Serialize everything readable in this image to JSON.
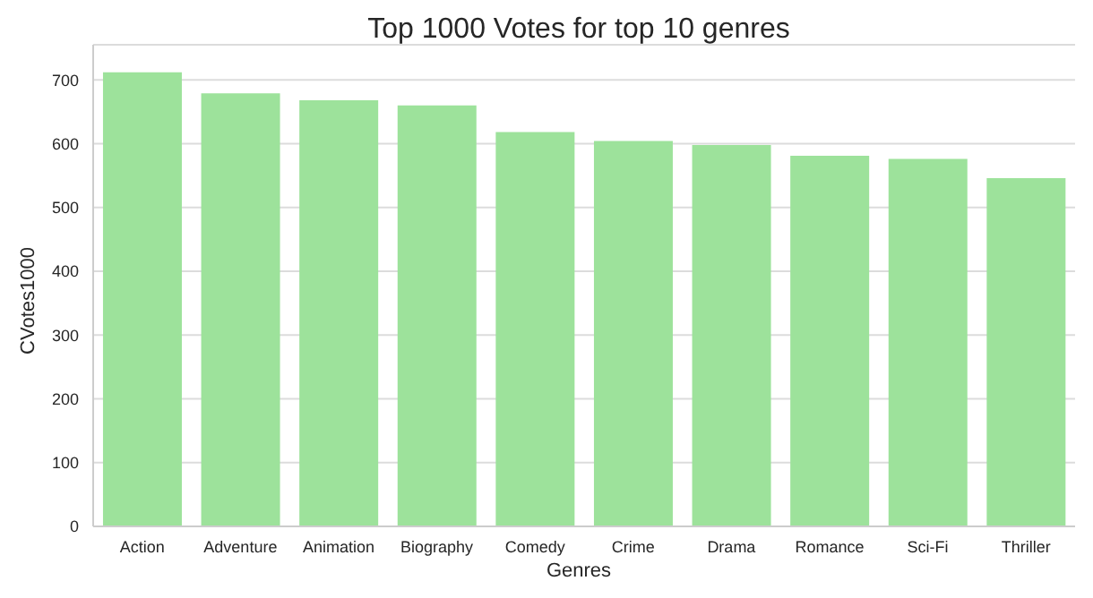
{
  "chart_data": {
    "type": "bar",
    "title": "Top 1000 Votes for top 10 genres",
    "xlabel": "Genres",
    "ylabel": "CVotes1000",
    "categories": [
      "Action",
      "Adventure",
      "Animation",
      "Biography",
      "Comedy",
      "Crime",
      "Drama",
      "Romance",
      "Sci-Fi",
      "Thriller"
    ],
    "values": [
      712,
      679,
      668,
      660,
      618,
      604,
      598,
      581,
      576,
      546
    ],
    "color": "#9de29b",
    "ylim": [
      0,
      755
    ],
    "yticks": [
      0,
      100,
      200,
      300,
      400,
      500,
      600,
      700
    ],
    "grid": "y"
  }
}
